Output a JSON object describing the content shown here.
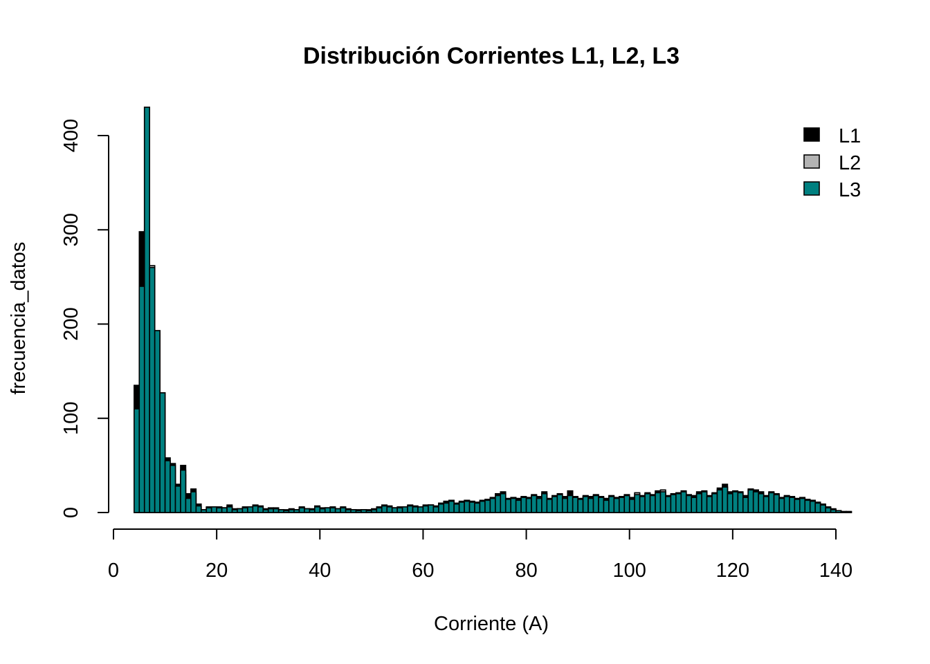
{
  "chart_data": {
    "type": "bar",
    "title": "Distribución Corrientes L1, L2, L3",
    "xlabel": "Corriente (A)",
    "ylabel": "frecuencia_datos",
    "xlim": [
      0,
      143
    ],
    "ylim": [
      0,
      430
    ],
    "x_ticks": [
      "0",
      "20",
      "40",
      "60",
      "80",
      "100",
      "120",
      "140"
    ],
    "y_ticks": [
      "0",
      "100",
      "200",
      "300",
      "400"
    ],
    "grid": false,
    "legend_position": "top-right",
    "bin_start": 4,
    "bin_width": 1,
    "series": [
      {
        "name": "L1",
        "color": "#000000",
        "values": [
          135,
          298,
          430,
          235,
          193,
          127,
          58,
          52,
          30,
          50,
          20,
          25,
          9,
          3,
          6,
          5,
          6,
          5,
          8,
          4,
          4,
          6,
          6,
          8,
          7,
          4,
          5,
          5,
          3,
          3,
          4,
          3,
          6,
          4,
          4,
          7,
          5,
          5,
          6,
          4,
          6,
          4,
          3,
          3,
          3,
          3,
          4,
          6,
          8,
          7,
          5,
          6,
          6,
          8,
          7,
          6,
          8,
          8,
          7,
          10,
          12,
          13,
          10,
          12,
          13,
          12,
          11,
          13,
          14,
          16,
          20,
          22,
          15,
          16,
          15,
          17,
          16,
          19,
          17,
          22,
          15,
          18,
          20,
          17,
          23,
          17,
          15,
          18,
          17,
          19,
          17,
          15,
          18,
          16,
          17,
          19,
          16,
          20,
          18,
          21,
          19,
          23,
          22,
          18,
          20,
          21,
          23,
          19,
          18,
          22,
          23,
          18,
          21,
          26,
          30,
          22,
          23,
          22,
          18,
          25,
          24,
          22,
          18,
          22,
          20,
          16,
          18,
          17,
          15,
          16,
          14,
          13,
          11,
          9,
          6,
          4,
          2,
          1,
          1
        ]
      },
      {
        "name": "L2",
        "color": "#b3b3b3",
        "values": [
          4,
          236,
          300,
          262,
          190,
          120,
          50,
          45,
          25,
          40,
          15,
          20,
          6,
          2,
          5,
          6,
          5,
          5,
          6,
          3,
          4,
          5,
          6,
          7,
          6,
          3,
          4,
          4,
          3,
          2,
          3,
          3,
          5,
          4,
          3,
          6,
          4,
          5,
          5,
          4,
          5,
          3,
          3,
          2,
          3,
          2,
          3,
          5,
          7,
          6,
          5,
          5,
          6,
          7,
          6,
          6,
          7,
          8,
          6,
          9,
          10,
          12,
          9,
          11,
          12,
          11,
          10,
          12,
          13,
          15,
          18,
          20,
          14,
          15,
          13,
          16,
          15,
          18,
          15,
          20,
          14,
          17,
          19,
          15,
          18,
          16,
          14,
          17,
          15,
          18,
          16,
          13,
          17,
          15,
          16,
          18,
          14,
          21,
          17,
          20,
          18,
          21,
          24,
          17,
          19,
          20,
          22,
          18,
          16,
          20,
          22,
          17,
          20,
          24,
          27,
          21,
          22,
          21,
          16,
          24,
          22,
          20,
          17,
          21,
          19,
          15,
          17,
          16,
          14,
          15,
          13,
          12,
          10,
          8,
          5,
          3,
          2,
          1,
          1
        ]
      },
      {
        "name": "L3",
        "color": "#008080",
        "values": [
          110,
          240,
          430,
          260,
          193,
          127,
          55,
          50,
          28,
          45,
          15,
          22,
          7,
          3,
          5,
          6,
          5,
          5,
          6,
          3,
          4,
          5,
          6,
          7,
          6,
          3,
          4,
          4,
          3,
          2,
          3,
          3,
          5,
          4,
          3,
          6,
          4,
          5,
          5,
          4,
          5,
          3,
          3,
          2,
          3,
          2,
          3,
          5,
          7,
          6,
          5,
          5,
          6,
          7,
          6,
          6,
          7,
          8,
          6,
          9,
          10,
          12,
          9,
          11,
          12,
          11,
          10,
          12,
          13,
          15,
          18,
          20,
          14,
          15,
          13,
          16,
          15,
          18,
          15,
          20,
          14,
          17,
          19,
          15,
          18,
          16,
          14,
          17,
          15,
          18,
          16,
          13,
          17,
          15,
          16,
          18,
          14,
          19,
          17,
          20,
          18,
          21,
          22,
          17,
          19,
          20,
          22,
          18,
          16,
          20,
          22,
          17,
          20,
          24,
          27,
          20,
          22,
          21,
          16,
          24,
          22,
          20,
          17,
          21,
          19,
          15,
          17,
          16,
          14,
          15,
          13,
          12,
          10,
          8,
          5,
          3,
          2,
          1,
          1
        ]
      }
    ]
  }
}
